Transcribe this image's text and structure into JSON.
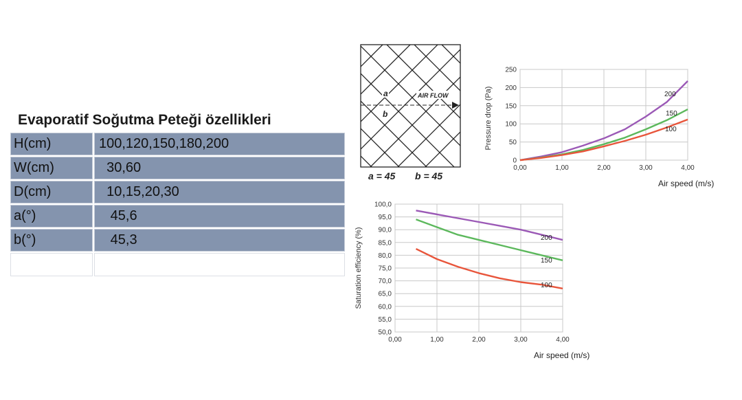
{
  "table": {
    "title": "Evaporatif Soğutma Peteği özellikleri",
    "rows": [
      {
        "label": "H(cm)",
        "value": "100,120,150,180,200"
      },
      {
        "label": "W(cm)",
        "value": "  30,60"
      },
      {
        "label": "D(cm)",
        "value": "  10,15,20,30"
      },
      {
        "label": "a(°)",
        "value": "   45,6"
      },
      {
        "label": "b(°)",
        "value": "   45,3"
      },
      {
        "label": "",
        "value": ""
      }
    ]
  },
  "mesh_diagram": {
    "label_a": "a",
    "label_b": "b",
    "airflow_label": "AIR FLOW",
    "caption_a": "a = 45",
    "caption_b": "b = 45"
  },
  "chart_data": [
    {
      "type": "line",
      "xlabel": "Air speed  (m/s)",
      "ylabel": "Pressure drop (Pa)",
      "xlim": [
        0,
        4
      ],
      "ylim": [
        0,
        250
      ],
      "xticks": [
        "0,00",
        "1,00",
        "2,00",
        "3,00",
        "4,00"
      ],
      "yticks": [
        "0",
        "50",
        "100",
        "150",
        "200",
        "250"
      ],
      "grid": true,
      "series": [
        {
          "name": "200",
          "color": "#9b59b6",
          "x": [
            0,
            0.5,
            1.0,
            1.5,
            2.0,
            2.5,
            3.0,
            3.5,
            4.0
          ],
          "y": [
            0,
            10,
            22,
            40,
            60,
            85,
            120,
            160,
            218
          ]
        },
        {
          "name": "150",
          "color": "#5cb85c",
          "x": [
            0,
            0.5,
            1.0,
            1.5,
            2.0,
            2.5,
            3.0,
            3.5,
            4.0
          ],
          "y": [
            0,
            7,
            16,
            28,
            44,
            62,
            85,
            110,
            140
          ]
        },
        {
          "name": "100",
          "color": "#e8553b",
          "x": [
            0,
            0.5,
            1.0,
            1.5,
            2.0,
            2.5,
            3.0,
            3.5,
            4.0
          ],
          "y": [
            0,
            6,
            14,
            24,
            38,
            53,
            70,
            90,
            112
          ]
        }
      ]
    },
    {
      "type": "line",
      "xlabel": "Air speed  (m/s)",
      "ylabel": "Saturation efficiency (%)",
      "xlim": [
        0,
        4
      ],
      "ylim": [
        50,
        100
      ],
      "xticks": [
        "0,00",
        "1,00",
        "2,00",
        "3,00",
        "4,00"
      ],
      "yticks": [
        "50,0",
        "55,0",
        "60,0",
        "65,0",
        "70,0",
        "75,0",
        "80,0",
        "85,0",
        "90,0",
        "95,0",
        "100,0"
      ],
      "grid": true,
      "series": [
        {
          "name": "200",
          "color": "#9b59b6",
          "x": [
            0.5,
            1.0,
            1.5,
            2.0,
            2.5,
            3.0,
            3.5,
            4.0
          ],
          "y": [
            97.5,
            96.0,
            94.5,
            93.0,
            91.5,
            90.0,
            88.0,
            86.0
          ]
        },
        {
          "name": "150",
          "color": "#5cb85c",
          "x": [
            0.5,
            1.0,
            1.5,
            2.0,
            2.5,
            3.0,
            3.5,
            4.0
          ],
          "y": [
            94.0,
            91.0,
            88.0,
            86.0,
            84.0,
            82.0,
            80.0,
            78.0
          ]
        },
        {
          "name": "100",
          "color": "#e8553b",
          "x": [
            0.5,
            1.0,
            1.5,
            2.0,
            2.5,
            3.0,
            3.5,
            4.0
          ],
          "y": [
            82.5,
            78.5,
            75.5,
            73.0,
            71.0,
            69.5,
            68.5,
            67.0
          ]
        }
      ]
    }
  ]
}
